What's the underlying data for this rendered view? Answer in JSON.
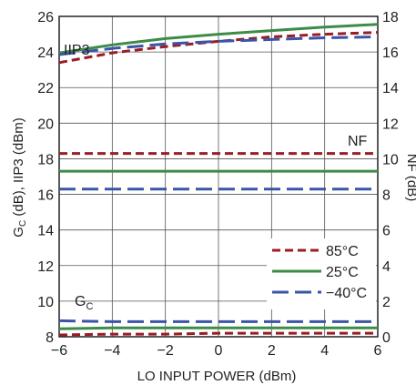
{
  "chart_data": {
    "type": "line",
    "xlabel": "LO INPUT POWER (dBm)",
    "ylabel_left": "G<sub>C</sub> (dB), IIP3 (dBm)",
    "ylabel_left_text": "GC (dB), IIP3 (dBm)",
    "ylabel_right": "NF (dB)",
    "xlim": [
      -6,
      6
    ],
    "ylim_left": [
      8,
      26
    ],
    "ylim_right": [
      0,
      18
    ],
    "x_ticks": [
      "−6",
      "−4",
      "−2",
      "0",
      "2",
      "4",
      "6"
    ],
    "y_left_ticks": [
      "8",
      "10",
      "12",
      "14",
      "16",
      "18",
      "20",
      "22",
      "24",
      "26"
    ],
    "y_right_ticks": [
      "0",
      "2",
      "4",
      "6",
      "8",
      "10",
      "12",
      "14",
      "16",
      "18"
    ],
    "grid": true,
    "annotations": {
      "iip3": "IIP3",
      "nf": "NF",
      "gc_main": "G",
      "gc_sub": "C"
    },
    "legend": {
      "placement": "right",
      "entries": [
        {
          "name": "85°C",
          "color": "#9b1c24",
          "dash": "dashed"
        },
        {
          "name": "25°C",
          "color": "#3c8c46",
          "dash": "solid"
        },
        {
          "name": "−40°C",
          "color": "#3a55a8",
          "dash": "longdash"
        }
      ]
    },
    "x": [
      -6,
      -4,
      -2,
      0,
      2,
      4,
      6
    ],
    "series": [
      {
        "name": "IIP3 85°C",
        "temp": "85°C",
        "axis": "left",
        "values": [
          23.4,
          23.95,
          24.3,
          24.6,
          24.85,
          25.0,
          25.1
        ]
      },
      {
        "name": "IIP3 25°C",
        "temp": "25°C",
        "axis": "left",
        "values": [
          23.95,
          24.4,
          24.75,
          25.0,
          25.2,
          25.4,
          25.55
        ]
      },
      {
        "name": "IIP3 -40°C",
        "temp": "−40°C",
        "axis": "left",
        "values": [
          23.85,
          24.2,
          24.45,
          24.6,
          24.7,
          24.8,
          24.85
        ]
      },
      {
        "name": "NF 85°C",
        "temp": "85°C",
        "axis": "right",
        "values": [
          10.3,
          10.3,
          10.3,
          10.3,
          10.3,
          10.3,
          10.3
        ]
      },
      {
        "name": "NF 25°C",
        "temp": "25°C",
        "axis": "right",
        "values": [
          9.3,
          9.3,
          9.3,
          9.3,
          9.3,
          9.3,
          9.3
        ]
      },
      {
        "name": "NF -40°C",
        "temp": "−40°C",
        "axis": "right",
        "values": [
          8.3,
          8.3,
          8.3,
          8.3,
          8.3,
          8.3,
          8.3
        ]
      },
      {
        "name": "GC 85°C",
        "temp": "85°C",
        "axis": "left",
        "values": [
          8.1,
          8.15,
          8.15,
          8.2,
          8.2,
          8.2,
          8.2
        ]
      },
      {
        "name": "GC 25°C",
        "temp": "25°C",
        "axis": "left",
        "values": [
          8.45,
          8.5,
          8.5,
          8.5,
          8.5,
          8.5,
          8.5
        ]
      },
      {
        "name": "GC -40°C",
        "temp": "−40°C",
        "axis": "left",
        "values": [
          8.9,
          8.85,
          8.85,
          8.85,
          8.85,
          8.85,
          8.85
        ]
      }
    ]
  }
}
